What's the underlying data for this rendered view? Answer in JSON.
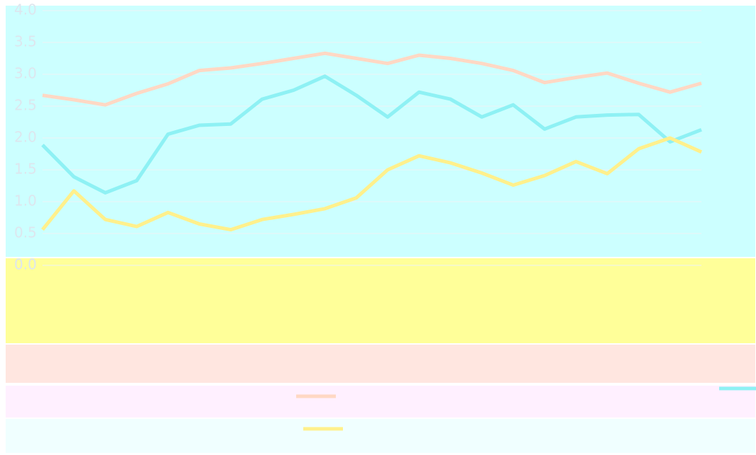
{
  "chart_data": {
    "type": "line",
    "ylim": [
      0,
      4
    ],
    "yticks": [
      {
        "value": 0,
        "label": "0.0"
      },
      {
        "value": 0.5,
        "label": "0.5"
      },
      {
        "value": 1,
        "label": "1.0"
      },
      {
        "value": 1.5,
        "label": "1.5"
      },
      {
        "value": 2,
        "label": "2.0"
      },
      {
        "value": 2.5,
        "label": "2.5"
      },
      {
        "value": 3,
        "label": "3.0"
      },
      {
        "value": 3.5,
        "label": "3.5"
      },
      {
        "value": 4,
        "label": "4.0"
      }
    ],
    "series": [
      {
        "color": "#ffd8c4",
        "values": [
          2.67,
          2.6,
          2.52,
          2.7,
          2.85,
          3.06,
          3.1,
          3.17,
          3.25,
          3.33,
          3.25,
          3.17,
          3.3,
          3.25,
          3.17,
          3.06,
          2.87,
          2.95,
          3.02,
          2.86,
          2.72,
          2.86
        ]
      },
      {
        "color": "#8ef1f4",
        "values": [
          1.89,
          1.39,
          1.14,
          1.33,
          2.06,
          2.2,
          2.22,
          2.61,
          2.75,
          2.97,
          2.67,
          2.33,
          2.72,
          2.61,
          2.33,
          2.52,
          2.14,
          2.33,
          2.36,
          2.37,
          1.94,
          2.13
        ]
      },
      {
        "color": "#fff08c",
        "values": [
          0.56,
          1.17,
          0.72,
          0.61,
          0.83,
          0.65,
          0.56,
          0.72,
          0.8,
          0.89,
          1.06,
          1.5,
          1.72,
          1.61,
          1.45,
          1.26,
          1.41,
          1.63,
          1.44,
          1.83,
          2.0,
          1.78
        ]
      }
    ]
  }
}
